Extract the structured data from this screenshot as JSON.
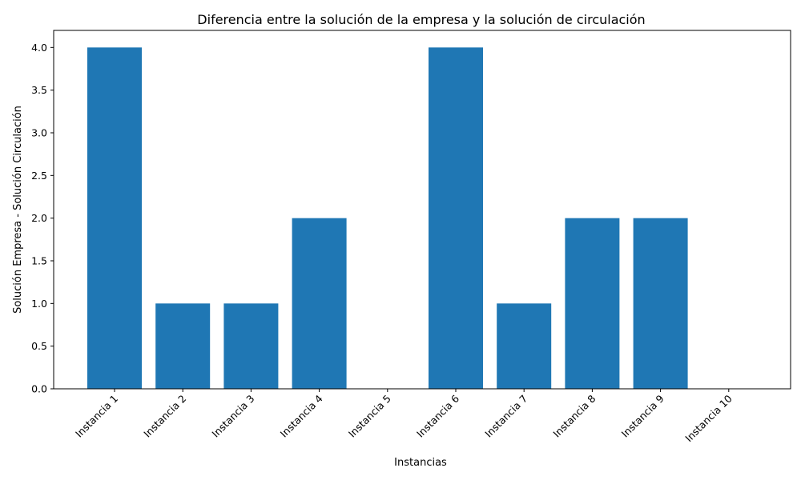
{
  "chart_data": {
    "type": "bar",
    "title": "Diferencia entre la solución de la empresa y la solución de circulación",
    "xlabel": "Instancias",
    "ylabel": "Solución Empresa - Solución Circulación",
    "categories": [
      "Instancia 1",
      "Instancia 2",
      "Instancia 3",
      "Instancia 4",
      "Instancia 5",
      "Instancia 6",
      "Instancia 7",
      "Instancia 8",
      "Instancia 9",
      "Instancia 10"
    ],
    "values": [
      4,
      1,
      1,
      2,
      0,
      4,
      1,
      2,
      2,
      0
    ],
    "ylim": [
      0,
      4.2
    ],
    "yticks": [
      "0.0",
      "0.5",
      "1.0",
      "1.5",
      "2.0",
      "2.5",
      "3.0",
      "3.5",
      "4.0"
    ],
    "xtick_rotation": "45 degrees",
    "grid": false,
    "bar_color": "#1f77b4"
  }
}
